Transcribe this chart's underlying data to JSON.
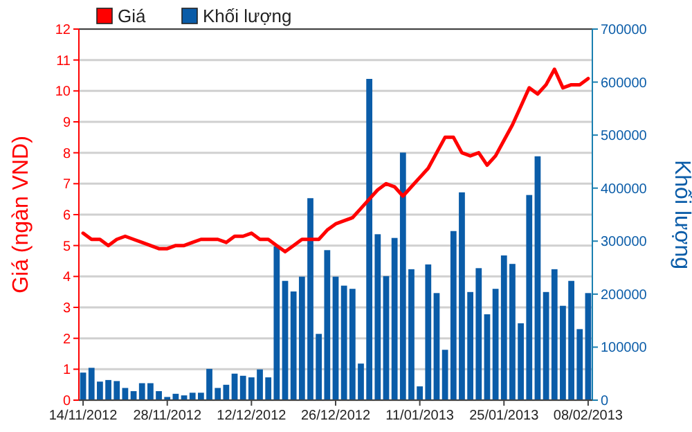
{
  "chart_data": {
    "type": "bar",
    "categories": [
      "14/11/2012",
      null,
      null,
      null,
      null,
      null,
      null,
      null,
      null,
      null,
      "28/11/2012",
      null,
      null,
      null,
      null,
      null,
      null,
      null,
      null,
      null,
      "12/12/2012",
      null,
      null,
      null,
      null,
      null,
      null,
      null,
      null,
      null,
      "26/12/2012",
      null,
      null,
      null,
      null,
      null,
      null,
      null,
      null,
      null,
      "11/01/2013",
      null,
      null,
      null,
      null,
      null,
      null,
      null,
      null,
      null,
      "25/01/2013",
      null,
      null,
      null,
      null,
      null,
      null,
      null,
      null,
      null,
      "08/02/2013"
    ],
    "series": [
      {
        "name": "Giá",
        "type": "line",
        "color": "#ff0000",
        "axis": "y",
        "values": [
          5.4,
          5.2,
          5.2,
          5.0,
          5.2,
          5.3,
          5.2,
          5.1,
          5.0,
          4.9,
          4.9,
          5.0,
          5.0,
          5.1,
          5.2,
          5.2,
          5.2,
          5.1,
          5.3,
          5.3,
          5.4,
          5.2,
          5.2,
          5.0,
          4.8,
          5.0,
          5.2,
          5.2,
          5.2,
          5.5,
          5.7,
          5.8,
          5.9,
          6.2,
          6.5,
          6.8,
          7.0,
          6.9,
          6.6,
          6.9,
          7.2,
          7.5,
          8.0,
          8.5,
          8.5,
          8.0,
          7.9,
          8.0,
          7.6,
          7.9,
          8.4,
          8.9,
          9.5,
          10.1,
          9.9,
          10.2,
          10.7,
          10.1,
          10.2,
          10.2,
          10.4
        ]
      },
      {
        "name": "Khối lượng",
        "color": "#0a5ca8",
        "axis": "y2",
        "values": [
          52000,
          61000,
          35000,
          38000,
          36000,
          23000,
          17000,
          32000,
          32000,
          17000,
          6000,
          12000,
          9000,
          14000,
          14000,
          59000,
          23000,
          29000,
          50000,
          46000,
          43000,
          58000,
          43000,
          290000,
          225000,
          205000,
          233000,
          381000,
          125000,
          283000,
          233000,
          216000,
          210000,
          69000,
          606000,
          313000,
          234000,
          306000,
          467000,
          247000,
          26000,
          256000,
          202000,
          95000,
          319000,
          392000,
          204000,
          249000,
          162000,
          210000,
          273000,
          257000,
          145000,
          387000,
          460000,
          204000,
          247000,
          178000,
          225000,
          134000,
          202000
        ]
      }
    ],
    "ylabel": "Giá (ngàn VND)",
    "y2label": "Khối lượng",
    "ylim": [
      0,
      12
    ],
    "yticks": [
      0,
      1,
      2,
      3,
      4,
      5,
      6,
      7,
      8,
      9,
      10,
      11,
      12
    ],
    "y2lim": [
      0,
      700000
    ],
    "y2ticks": [
      0,
      100000,
      200000,
      300000,
      400000,
      500000,
      600000,
      700000
    ],
    "grid": "y",
    "legend": "top left"
  }
}
